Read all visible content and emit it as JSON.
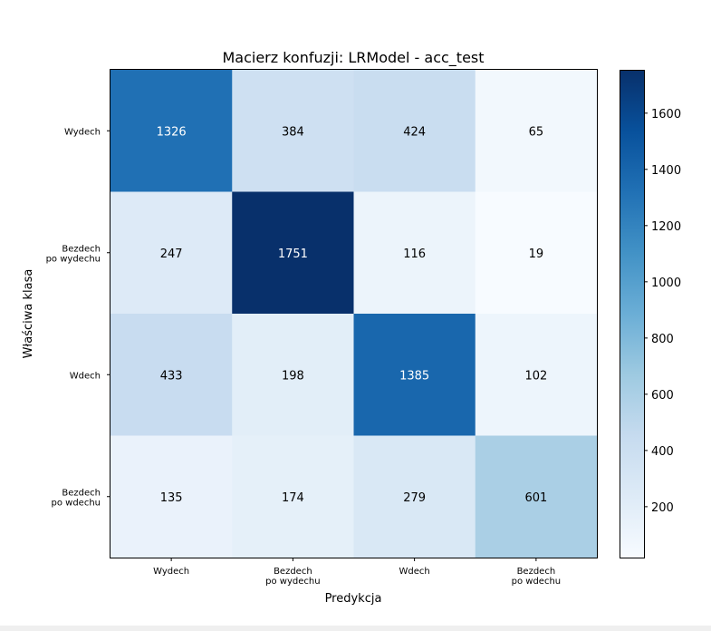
{
  "chart_data": {
    "type": "heatmap",
    "title": "Macierz konfuzji: LRModel - acc_test",
    "xlabel": "Predykcja",
    "ylabel": "Właściwa klasa",
    "x_categories": [
      [
        "Wydech"
      ],
      [
        "Bezdech",
        "po wydechu"
      ],
      [
        "Wdech"
      ],
      [
        "Bezdech",
        "po wdechu"
      ]
    ],
    "y_categories": [
      [
        "Wydech"
      ],
      [
        "Bezdech",
        "po wydechu"
      ],
      [
        "Wdech"
      ],
      [
        "Bezdech",
        "po wdechu"
      ]
    ],
    "values": [
      [
        1326,
        384,
        424,
        65
      ],
      [
        247,
        1751,
        116,
        19
      ],
      [
        433,
        198,
        1385,
        102
      ],
      [
        135,
        174,
        279,
        601
      ]
    ],
    "colormap": "Blues",
    "colorbar": {
      "min": 19,
      "max": 1751,
      "ticks": [
        200,
        400,
        600,
        800,
        1000,
        1200,
        1400,
        1600
      ]
    }
  }
}
